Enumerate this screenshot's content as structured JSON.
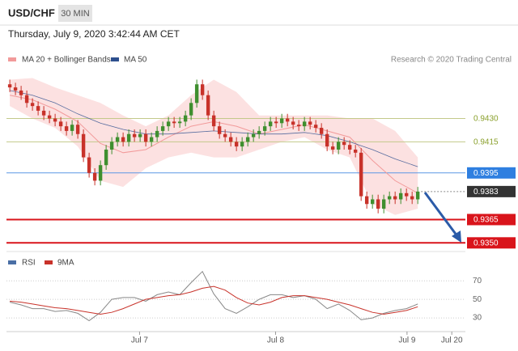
{
  "chart_data": {
    "type": "candlestick",
    "title": "USD/CHF",
    "timeframe": "30 MIN",
    "date": "Thursday, July 9, 2020 3:42:44 AM CET",
    "credit": "Research © 2020 Trading Central",
    "up_color": "#3f8f2f",
    "down_color": "#c8322a",
    "xlim": [
      -0.3,
      80.4
    ],
    "ylim": [
      0.9346,
      0.9462
    ],
    "xticks": [
      {
        "value": 22.9,
        "label": "Jul 7"
      },
      {
        "value": 46.9,
        "label": "Jul 8"
      },
      {
        "value": 70.1,
        "label": "Jul 9"
      },
      {
        "value": 78,
        "label": "Jul 20"
      }
    ],
    "x": [
      0,
      1,
      2,
      3,
      4,
      5,
      6,
      7,
      8,
      9,
      10,
      11,
      12,
      13,
      14,
      15,
      16,
      17,
      18,
      19,
      20,
      21,
      22,
      23,
      24,
      25,
      26,
      27,
      28,
      29,
      30,
      31,
      32,
      33,
      34,
      35,
      36,
      37,
      38,
      39,
      40,
      41,
      42,
      43,
      44,
      45,
      46,
      47,
      48,
      49,
      50,
      51,
      52,
      53,
      54,
      55,
      56,
      57,
      58,
      59,
      60,
      61,
      62,
      63,
      64,
      65,
      66,
      67,
      68,
      69,
      70,
      71,
      72
    ],
    "open": [
      0.9452,
      0.945,
      0.9448,
      0.9445,
      0.944,
      0.9438,
      0.9435,
      0.9432,
      0.943,
      0.9428,
      0.9425,
      0.9422,
      0.9426,
      0.942,
      0.9405,
      0.9395,
      0.939,
      0.94,
      0.941,
      0.9415,
      0.9418,
      0.9415,
      0.942,
      0.9418,
      0.942,
      0.9415,
      0.9418,
      0.9422,
      0.9425,
      0.9428,
      0.9427,
      0.9428,
      0.9432,
      0.944,
      0.9452,
      0.9445,
      0.9432,
      0.9425,
      0.942,
      0.9418,
      0.9415,
      0.9412,
      0.9415,
      0.9418,
      0.942,
      0.9422,
      0.9425,
      0.9428,
      0.9427,
      0.943,
      0.9428,
      0.9426,
      0.9425,
      0.9428,
      0.9426,
      0.9424,
      0.942,
      0.9412,
      0.941,
      0.9415,
      0.9413,
      0.941,
      0.9408,
      0.938,
      0.9375,
      0.9378,
      0.9372,
      0.9378,
      0.938,
      0.9378,
      0.9382,
      0.938,
      0.9378
    ],
    "high": [
      0.9455,
      0.9453,
      0.9451,
      0.9448,
      0.9443,
      0.9441,
      0.9438,
      0.9435,
      0.9433,
      0.9431,
      0.9428,
      0.9429,
      0.9429,
      0.9423,
      0.9408,
      0.9398,
      0.9403,
      0.9413,
      0.9418,
      0.9421,
      0.9421,
      0.9423,
      0.9423,
      0.9423,
      0.9423,
      0.9421,
      0.9425,
      0.9428,
      0.9431,
      0.9431,
      0.9431,
      0.9435,
      0.9443,
      0.9455,
      0.9455,
      0.9448,
      0.9435,
      0.9428,
      0.9423,
      0.9421,
      0.9418,
      0.9418,
      0.9421,
      0.9423,
      0.9425,
      0.9428,
      0.9431,
      0.9431,
      0.9433,
      0.9433,
      0.9431,
      0.9429,
      0.9431,
      0.9431,
      0.9429,
      0.9427,
      0.9423,
      0.9415,
      0.9418,
      0.9418,
      0.9416,
      0.9413,
      0.9411,
      0.9383,
      0.9381,
      0.9381,
      0.9381,
      0.9383,
      0.9383,
      0.9385,
      0.9385,
      0.9383,
      0.9386
    ],
    "low": [
      0.9447,
      0.9445,
      0.9442,
      0.9437,
      0.9435,
      0.9432,
      0.9429,
      0.9427,
      0.9425,
      0.9422,
      0.9419,
      0.9419,
      0.9417,
      0.9402,
      0.9392,
      0.9387,
      0.9387,
      0.9397,
      0.9407,
      0.9412,
      0.9412,
      0.9412,
      0.9415,
      0.9415,
      0.9412,
      0.9412,
      0.9415,
      0.9419,
      0.9422,
      0.9424,
      0.9424,
      0.9425,
      0.9429,
      0.9437,
      0.9442,
      0.9429,
      0.9422,
      0.9417,
      0.9415,
      0.9412,
      0.9409,
      0.9409,
      0.9412,
      0.9415,
      0.9417,
      0.9419,
      0.9422,
      0.9424,
      0.9424,
      0.9425,
      0.9423,
      0.9422,
      0.9422,
      0.9423,
      0.9421,
      0.9417,
      0.9409,
      0.9407,
      0.9407,
      0.941,
      0.9407,
      0.9405,
      0.9377,
      0.9372,
      0.9372,
      0.9369,
      0.9369,
      0.9375,
      0.9375,
      0.9375,
      0.9377,
      0.9375,
      0.9375
    ],
    "close": [
      0.945,
      0.9448,
      0.9445,
      0.944,
      0.9438,
      0.9435,
      0.9432,
      0.943,
      0.9428,
      0.9425,
      0.9422,
      0.9426,
      0.942,
      0.9405,
      0.9395,
      0.939,
      0.94,
      0.941,
      0.9415,
      0.9418,
      0.9415,
      0.942,
      0.9418,
      0.942,
      0.9415,
      0.9418,
      0.9422,
      0.9425,
      0.9428,
      0.9427,
      0.9428,
      0.9432,
      0.944,
      0.9452,
      0.9445,
      0.9432,
      0.9425,
      0.942,
      0.9418,
      0.9415,
      0.9412,
      0.9415,
      0.9418,
      0.942,
      0.9422,
      0.9425,
      0.9428,
      0.9427,
      0.943,
      0.9428,
      0.9426,
      0.9425,
      0.9428,
      0.9426,
      0.9424,
      0.942,
      0.9412,
      0.941,
      0.9415,
      0.9413,
      0.941,
      0.9408,
      0.938,
      0.9375,
      0.9378,
      0.9372,
      0.9378,
      0.938,
      0.9378,
      0.9382,
      0.938,
      0.9378,
      0.9383
    ],
    "bollinger": {
      "name": "MA 20 + Bollinger Bands",
      "color": "#f29a9a",
      "band_color": "#fbd9d9",
      "x": [
        0,
        4,
        8,
        12,
        16,
        20,
        24,
        28,
        32,
        36,
        40,
        44,
        48,
        52,
        56,
        60,
        64,
        68,
        72
      ],
      "values": [
        0.9445,
        0.9442,
        0.9436,
        0.9428,
        0.9414,
        0.9408,
        0.941,
        0.9418,
        0.9425,
        0.9428,
        0.9425,
        0.942,
        0.9423,
        0.9426,
        0.9422,
        0.9418,
        0.9403,
        0.939,
        0.9382
      ],
      "upper": [
        0.9455,
        0.9456,
        0.945,
        0.9445,
        0.944,
        0.9432,
        0.9425,
        0.9432,
        0.9445,
        0.9455,
        0.9447,
        0.9432,
        0.9432,
        0.9432,
        0.9432,
        0.943,
        0.943,
        0.9422,
        0.9405
      ],
      "lower": [
        0.9438,
        0.943,
        0.9424,
        0.9412,
        0.939,
        0.9386,
        0.9398,
        0.9405,
        0.9408,
        0.9405,
        0.9405,
        0.941,
        0.9415,
        0.9418,
        0.941,
        0.9405,
        0.9375,
        0.9368,
        0.9372
      ]
    },
    "ma50": {
      "name": "MA 50",
      "color": "#2d4f8e",
      "x": [
        0,
        4,
        8,
        12,
        16,
        20,
        24,
        28,
        32,
        36,
        40,
        44,
        48,
        52,
        56,
        60,
        64,
        68,
        72
      ],
      "values": [
        0.9448,
        0.9445,
        0.944,
        0.9433,
        0.9427,
        0.9423,
        0.942,
        0.942,
        0.9421,
        0.9422,
        0.9421,
        0.942,
        0.942,
        0.9421,
        0.9419,
        0.9415,
        0.941,
        0.9404,
        0.9399
      ]
    },
    "levels": [
      {
        "value": 0.943,
        "label": "0.9430",
        "color": "#8aa02c",
        "line_color": "#c3c98a",
        "boxed": false,
        "width": 1,
        "dash": false
      },
      {
        "value": 0.9415,
        "label": "0.9415",
        "color": "#8aa02c",
        "line_color": "#c3c98a",
        "boxed": false,
        "width": 1,
        "dash": false
      },
      {
        "value": 0.9395,
        "label": "0.9395",
        "color": "#2f7fe0",
        "line_color": "#5b98e6",
        "boxed": true,
        "width": 1,
        "dash": false
      },
      {
        "value": 0.9383,
        "label": "0.9383",
        "color": "#333333",
        "line_color": "#888888",
        "boxed": true,
        "width": 1,
        "dash": true
      },
      {
        "value": 0.9365,
        "label": "0.9365",
        "color": "#d9141b",
        "line_color": "#d9141b",
        "boxed": true,
        "width": 2,
        "dash": false
      },
      {
        "value": 0.935,
        "label": "0.9350",
        "color": "#d9141b",
        "line_color": "#d9141b",
        "boxed": true,
        "width": 2,
        "dash": false
      }
    ],
    "rsi": {
      "name": "RSI",
      "color": "#4a6fa5",
      "line_color": "#888888",
      "ylim": [
        17,
        85
      ],
      "yticks": [
        30,
        50,
        70
      ],
      "x": [
        0,
        2,
        4,
        6,
        8,
        10,
        12,
        14,
        16,
        18,
        20,
        22,
        24,
        26,
        28,
        30,
        32,
        34,
        36,
        38,
        40,
        42,
        44,
        46,
        48,
        50,
        52,
        54,
        56,
        58,
        60,
        62,
        64,
        66,
        68,
        70,
        72
      ],
      "values": [
        47,
        44,
        40,
        40,
        37,
        38,
        35,
        27,
        36,
        50,
        52,
        52,
        48,
        55,
        58,
        55,
        68,
        80,
        56,
        40,
        35,
        42,
        50,
        55,
        55,
        52,
        54,
        50,
        40,
        45,
        38,
        28,
        30,
        35,
        38,
        40,
        45
      ]
    },
    "ma9": {
      "name": "9MA",
      "color": "#c8322a",
      "values": [
        48,
        47,
        45,
        43,
        41,
        40,
        38,
        36,
        34,
        36,
        40,
        45,
        50,
        52,
        54,
        55,
        58,
        62,
        64,
        60,
        52,
        46,
        44,
        47,
        52,
        54,
        54,
        52,
        50,
        47,
        44,
        40,
        36,
        34,
        36,
        38,
        42
      ]
    }
  }
}
